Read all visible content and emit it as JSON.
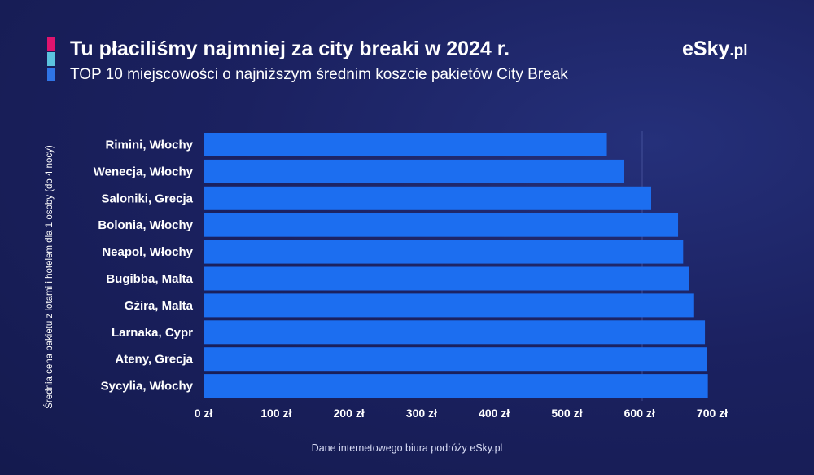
{
  "header": {
    "title": "Tu płaciliśmy najmniej za city breaki w 2024 r.",
    "subtitle": "TOP 10 miejscowości o najniższym średnim koszcie pakietów City Break",
    "accent_colors": [
      "#e0146e",
      "#5bc2de",
      "#2f74e6"
    ]
  },
  "logo": {
    "main": "eSky",
    "tld": ".pl"
  },
  "footer": {
    "source": "Dane internetowego biura podróży eSky.pl"
  },
  "chart_data": {
    "type": "bar",
    "orientation": "horizontal",
    "title": "Tu płaciliśmy najmniej za city breaki w 2024 r.",
    "subtitle": "TOP 10 miejscowości o najniższym średnim koszcie pakietów City Break",
    "ylabel": "Średnia cena pakietu z lotami i hotelem dla 1 osoby (do 4 nocy)",
    "xlabel": "",
    "categories": [
      "Rimini, Włochy",
      "Wenecja, Włochy",
      "Saloniki, Grecja",
      "Bolonia, Włochy",
      "Neapol, Włochy",
      "Bugibba, Malta",
      "Gżira, Malta",
      "Larnaka, Cypr",
      "Ateny, Grecja",
      "Sycylia, Włochy"
    ],
    "values": [
      555,
      578,
      616,
      653,
      660,
      668,
      674,
      690,
      693,
      694
    ],
    "xlim": [
      0,
      700
    ],
    "x_ticks": [
      0,
      100,
      200,
      300,
      400,
      500,
      600,
      700
    ],
    "x_tick_labels": [
      "0 zł",
      "100 zł",
      "200 zł",
      "300 zł",
      "400 zł",
      "500 zł",
      "600 zł",
      "700 zł"
    ],
    "bar_color": "#1c6ef0",
    "grid": false,
    "legend": "none"
  }
}
